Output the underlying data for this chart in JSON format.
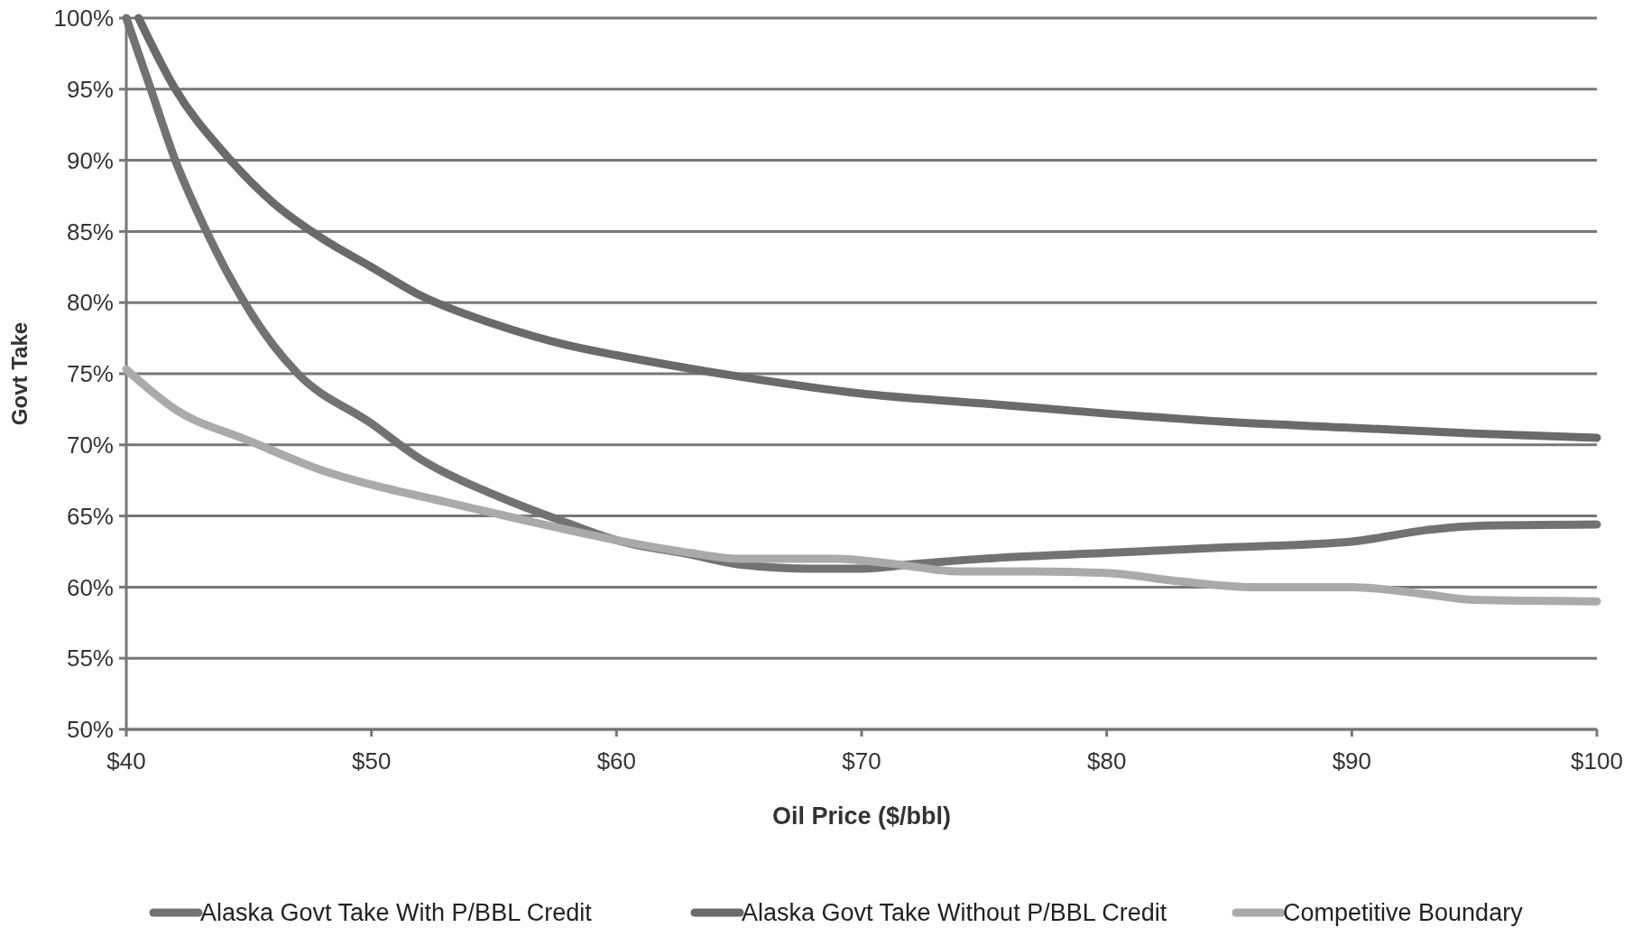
{
  "chart_data": {
    "type": "line",
    "xlabel": "Oil Price ($/bbl)",
    "ylabel": "Govt Take",
    "xlim": [
      40,
      100
    ],
    "xticks": [
      {
        "value": 40,
        "label": "$40"
      },
      {
        "value": 50,
        "label": "$50"
      },
      {
        "value": 60,
        "label": "$60"
      },
      {
        "value": 70,
        "label": "$70"
      },
      {
        "value": 80,
        "label": "$80"
      },
      {
        "value": 90,
        "label": "$90"
      },
      {
        "value": 100,
        "label": "$100"
      }
    ],
    "ylim": [
      50,
      100
    ],
    "yticks": [
      {
        "value": 50,
        "label": "50%"
      },
      {
        "value": 55,
        "label": "55%"
      },
      {
        "value": 60,
        "label": "60%"
      },
      {
        "value": 65,
        "label": "65%"
      },
      {
        "value": 70,
        "label": "70%"
      },
      {
        "value": 75,
        "label": "75%"
      },
      {
        "value": 80,
        "label": "80%"
      },
      {
        "value": 85,
        "label": "85%"
      },
      {
        "value": 90,
        "label": "90%"
      },
      {
        "value": 95,
        "label": "95%"
      },
      {
        "value": 100,
        "label": "100%"
      }
    ],
    "grid": "y",
    "legend": "bottom",
    "marker": "none",
    "line_style": "solid",
    "series": [
      {
        "name": "Alaska Govt Take With P/BBL Credit",
        "color": "#727272",
        "x": [
          40,
          41,
          42,
          43,
          44,
          46,
          47,
          50,
          52,
          55,
          58,
          60,
          63,
          65,
          68,
          70,
          72,
          75,
          80,
          85,
          90,
          93,
          95,
          100
        ],
        "values": [
          100,
          95,
          90,
          86,
          82.5,
          77,
          75,
          71.5,
          69,
          66.5,
          64.5,
          63.3,
          62.3,
          61.6,
          61.3,
          61.3,
          61.6,
          62,
          62.4,
          62.8,
          63.2,
          64,
          64.3,
          64.4
        ]
      },
      {
        "name": "Alaska Govt Take Without P/BBL Credit",
        "color": "#6a6a6a",
        "x": [
          40.5,
          42,
          44,
          46,
          48,
          50,
          52,
          55,
          58,
          60,
          65,
          70,
          75,
          80,
          85,
          90,
          95,
          100
        ],
        "values": [
          100,
          95,
          90.5,
          87,
          84.5,
          82.5,
          80.5,
          78.5,
          77,
          76.3,
          74.8,
          73.6,
          72.9,
          72.2,
          71.6,
          71.2,
          70.8,
          70.5
        ]
      },
      {
        "name": "Competitive Boundary",
        "color": "#aaaaaa",
        "x": [
          40,
          42,
          45,
          48,
          50,
          53,
          56,
          60,
          63,
          65,
          69,
          71,
          74,
          77,
          80,
          83,
          86,
          90,
          93,
          95,
          100
        ],
        "values": [
          75.3,
          72.5,
          70.3,
          68.2,
          67.2,
          66,
          64.8,
          63.3,
          62.4,
          62,
          62,
          61.7,
          61.1,
          61.1,
          61,
          60.4,
          60,
          60,
          59.5,
          59.1,
          59
        ]
      }
    ]
  }
}
